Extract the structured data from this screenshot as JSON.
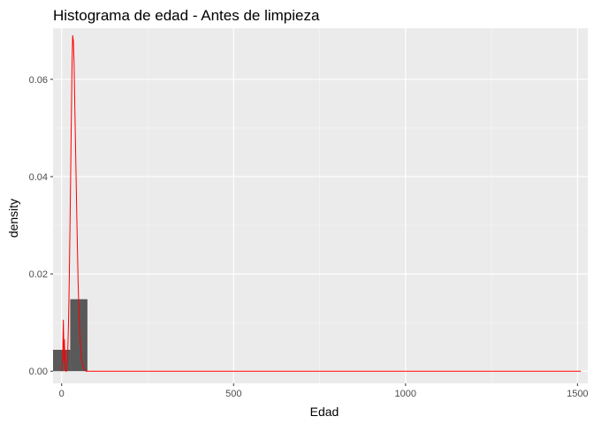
{
  "chart_data": {
    "type": "bar",
    "title": "Histograma de edad - Antes de limpieza",
    "xlabel": "Edad",
    "ylabel": "density",
    "xlim": [
      -25,
      1530
    ],
    "ylim": [
      -0.0025,
      0.0705
    ],
    "x_ticks": [
      0,
      500,
      1000,
      1500
    ],
    "x_tick_labels": [
      "0",
      "500",
      "1000",
      "1500"
    ],
    "y_ticks": [
      0.0,
      0.02,
      0.04,
      0.06
    ],
    "y_tick_labels": [
      "0.00",
      "0.02",
      "0.04",
      "0.06"
    ],
    "grid": true,
    "histogram": {
      "name": "",
      "color": "#595959",
      "bins": [
        {
          "x0": -25,
          "x1": 25,
          "density": 0.0044
        },
        {
          "x0": 25,
          "x1": 75,
          "density": 0.0148
        }
      ]
    },
    "density_line": {
      "name": "",
      "color": "#ff0000",
      "x": [
        0,
        3,
        5,
        7,
        8,
        10,
        12,
        14,
        16,
        18,
        20,
        22,
        24,
        26,
        28,
        30,
        32,
        34,
        36,
        38,
        40,
        42,
        44,
        46,
        48,
        50,
        52,
        54,
        56,
        58,
        60,
        62,
        65,
        70,
        75,
        100,
        500,
        1000,
        1510
      ],
      "y": [
        0.0,
        0.003,
        0.0105,
        0.002,
        0.0065,
        0.0005,
        0.0,
        0.0,
        0.0015,
        0.0045,
        0.01,
        0.018,
        0.028,
        0.039,
        0.051,
        0.062,
        0.069,
        0.068,
        0.064,
        0.056,
        0.048,
        0.04,
        0.032,
        0.025,
        0.018,
        0.013,
        0.009,
        0.006,
        0.004,
        0.0025,
        0.0015,
        0.001,
        0.0005,
        0.0,
        0.0,
        0.0,
        0.0,
        0.0,
        0.0
      ]
    }
  },
  "style": {
    "panel_bg": "#ebebeb",
    "grid_major": "#ffffff",
    "grid_minor": "#f5f5f5",
    "tick_color": "#333333"
  }
}
